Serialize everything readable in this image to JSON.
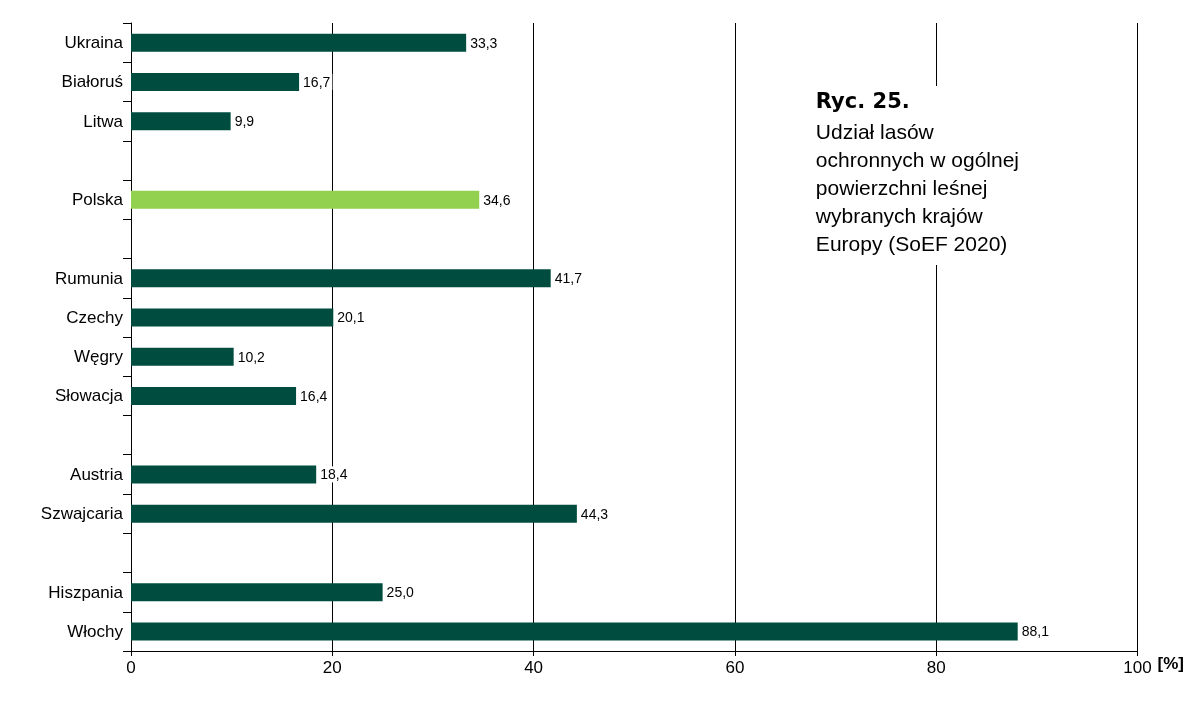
{
  "chart_data": {
    "type": "bar",
    "orientation": "horizontal",
    "title": "Ryc. 25.",
    "subtitle": "Udział lasów\nochronnych w ogólnej\npowierzchni leśnej\nwybranych krajów\nEuropy (SoEF 2020)",
    "xlabel": "[%]",
    "categories": [
      "Ukraina",
      "Białoruś",
      "Litwa",
      null,
      "Polska",
      null,
      "Rumunia",
      "Czechy",
      "Węgry",
      "Słowacja",
      null,
      "Austria",
      "Szwajcaria",
      null,
      "Hiszpania",
      "Włochy"
    ],
    "values": [
      33.3,
      16.7,
      9.9,
      null,
      34.6,
      null,
      41.7,
      20.1,
      10.2,
      16.4,
      null,
      18.4,
      44.3,
      null,
      25.0,
      88.1
    ],
    "value_labels": [
      "33,3",
      "16,7",
      "9,9",
      null,
      "34,6",
      null,
      "41,7",
      "20,1",
      "10,2",
      "16,4",
      null,
      "18,4",
      "44,3",
      null,
      "25,0",
      "88,1"
    ],
    "colors": [
      "#004d40",
      "#004d40",
      "#004d40",
      "#004d40",
      "#92d050",
      "#004d40",
      "#004d40",
      "#004d40",
      "#004d40",
      "#004d40",
      "#004d40",
      "#004d40",
      "#004d40",
      "#004d40",
      "#004d40",
      "#004d40"
    ],
    "xlim": [
      0,
      100
    ],
    "xticks": [
      0,
      20,
      40,
      60,
      80,
      100
    ],
    "grid": "x"
  }
}
